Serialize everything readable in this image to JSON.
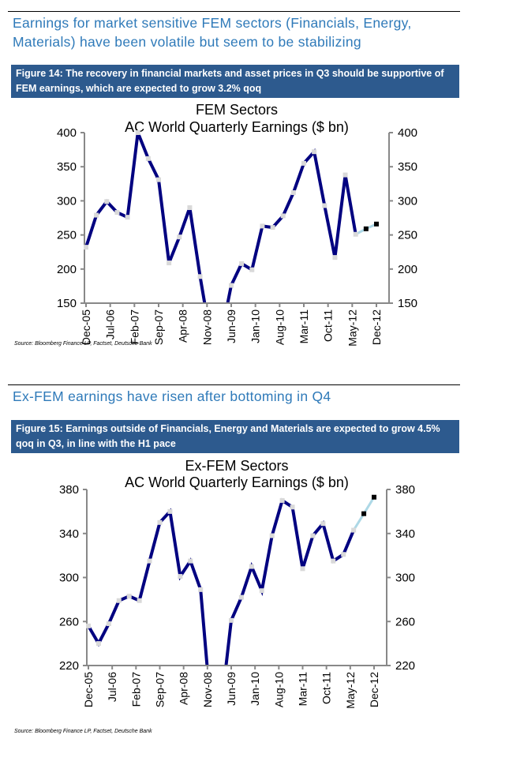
{
  "section1": {
    "heading": "Earnings for market sensitive FEM sectors (Financials, Energy, Materials) have been volatile but seem to be stabilizing",
    "caption": "Figure 14: The recovery in financial markets and asset prices in Q3 should be supportive of FEM earnings, which are expected to grow 3.2% qoq",
    "source": "Source: Bloomberg Finance LP, Factset, Deutsche Bank"
  },
  "section2": {
    "heading": "Ex-FEM earnings have risen after bottoming in Q4",
    "caption": "Figure 15: Earnings outside of Financials, Energy and Materials are expected to grow 4.5% qoq in Q3, in line with the H1 pace",
    "source": "Source: Bloomberg Finance LP, Factset, Deutsche Bank"
  },
  "chart_data": [
    {
      "type": "line",
      "title": "FEM Sectors",
      "subtitle": "AC World Quarterly Earnings ($ bn)",
      "xlabel": "",
      "ylabel": "",
      "ylim": [
        150,
        400
      ],
      "yticks": [
        150,
        200,
        250,
        300,
        350,
        400
      ],
      "xtick_labels": [
        "Dec-05",
        "Jul-06",
        "Feb-07",
        "Sep-07",
        "Apr-08",
        "Nov-08",
        "Jun-09",
        "Jan-10",
        "Aug-10",
        "Mar-11",
        "Oct-11",
        "May-12",
        "Dec-12"
      ],
      "grid": false,
      "series": [
        {
          "name": "Earnings",
          "color": "#000080",
          "values": [
            232,
            279,
            299,
            283,
            276,
            400,
            362,
            331,
            209,
            247,
            290,
            189,
            100,
            100,
            176,
            208,
            199,
            263,
            261,
            278,
            312,
            355,
            372,
            293,
            217,
            338,
            251,
            259,
            266
          ],
          "forecast_from_index": 26,
          "forecast_color": "#add8e6"
        }
      ]
    },
    {
      "type": "line",
      "title": "Ex-FEM Sectors",
      "subtitle": "AC World Quarterly Earnings ($ bn)",
      "xlabel": "",
      "ylabel": "",
      "ylim": [
        220,
        380
      ],
      "yticks": [
        220,
        260,
        300,
        340,
        380
      ],
      "xtick_labels": [
        "Dec-05",
        "Jul-06",
        "Feb-07",
        "Sep-07",
        "Apr-08",
        "Nov-08",
        "Jun-09",
        "Jan-10",
        "Aug-10",
        "Mar-11",
        "Oct-11",
        "May-12",
        "Dec-12"
      ],
      "grid": false,
      "series": [
        {
          "name": "Earnings",
          "color": "#000080",
          "values": [
            256,
            240,
            258,
            279,
            283,
            279,
            315,
            350,
            360,
            301,
            315,
            289,
            180,
            180,
            261,
            282,
            310,
            288,
            338,
            370,
            364,
            308,
            338,
            349,
            315,
            321,
            343,
            358,
            373
          ],
          "forecast_from_index": 26,
          "forecast_color": "#add8e6"
        }
      ]
    }
  ]
}
